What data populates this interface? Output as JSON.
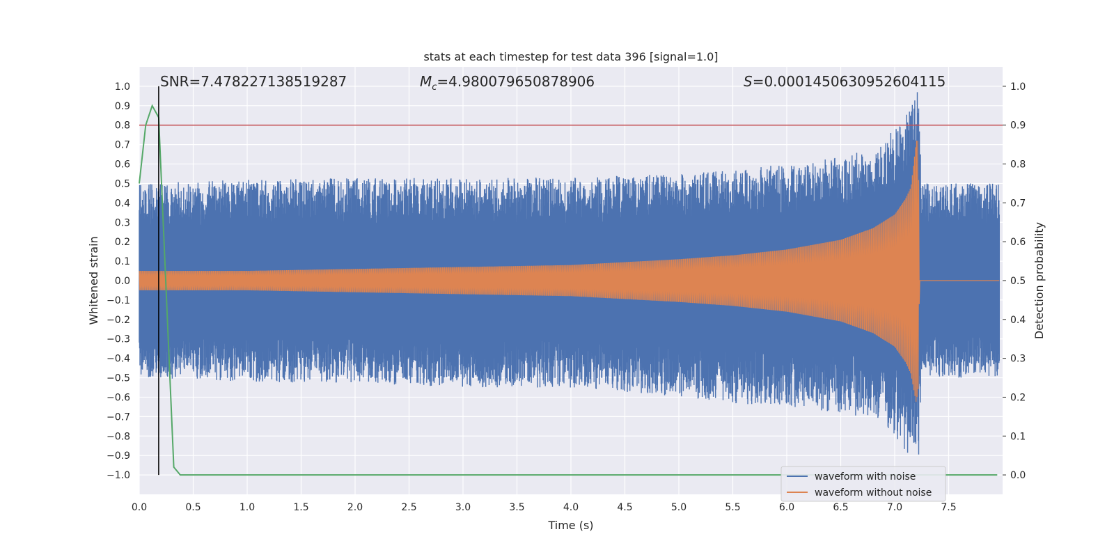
{
  "chart_data": {
    "type": "line",
    "title": "stats at each timestep for test data 396 [signal=1.0]",
    "xlabel": "Time (s)",
    "ylabel_left": "Whitened strain",
    "ylabel_right": "Detection probability",
    "xlim": [
      0.0,
      8.0
    ],
    "ylim_left": [
      -1.1,
      1.1
    ],
    "ylim_right": [
      -0.05,
      1.05
    ],
    "x_ticks": [
      "0.0",
      "0.5",
      "1.0",
      "1.5",
      "2.0",
      "2.5",
      "3.0",
      "3.5",
      "4.0",
      "4.5",
      "5.0",
      "5.5",
      "6.0",
      "6.5",
      "7.0",
      "7.5"
    ],
    "y_left_ticks": [
      "1.0",
      "0.9",
      "0.8",
      "0.7",
      "0.6",
      "0.5",
      "0.4",
      "0.3",
      "0.2",
      "0.1",
      "0.0",
      "−0.1",
      "−0.2",
      "−0.3",
      "−0.4",
      "−0.5",
      "−0.6",
      "−0.7",
      "−0.8",
      "−0.9",
      "−1.0"
    ],
    "y_right_ticks": [
      "1.0",
      "0.9",
      "0.8",
      "0.7",
      "0.6",
      "0.5",
      "0.4",
      "0.3",
      "0.2",
      "0.1",
      "0.0"
    ],
    "grid": true,
    "legend_position": "lower-right",
    "annotations": {
      "snr": "SNR=7.478227138519287",
      "mc_symbol": "M",
      "mc_sub": "c",
      "mc_value": "=4.980079650878906",
      "s_symbol": "S",
      "s_value": "=0.0001450630952604115"
    },
    "series": [
      {
        "name": "waveform with noise",
        "color": "#4c72b0",
        "axis": "left",
        "envelope": {
          "x": [
            0.0,
            1.0,
            2.0,
            3.0,
            4.0,
            5.0,
            5.5,
            6.0,
            6.5,
            6.8,
            7.0,
            7.15,
            7.22,
            7.25,
            7.5,
            8.0
          ],
          "upper": [
            0.5,
            0.52,
            0.53,
            0.53,
            0.53,
            0.55,
            0.57,
            0.6,
            0.64,
            0.68,
            0.78,
            0.9,
            1.0,
            0.5,
            0.5,
            0.5
          ],
          "lower": [
            -0.5,
            -0.52,
            -0.53,
            -0.55,
            -0.55,
            -0.6,
            -0.63,
            -0.65,
            -0.68,
            -0.72,
            -0.8,
            -0.92,
            -0.96,
            -0.5,
            -0.5,
            -0.5
          ]
        }
      },
      {
        "name": "waveform without noise",
        "color": "#dd8452",
        "axis": "left",
        "envelope": {
          "x": [
            0.0,
            1.0,
            2.0,
            3.0,
            4.0,
            5.0,
            5.5,
            6.0,
            6.5,
            6.8,
            7.0,
            7.1,
            7.15,
            7.2,
            7.22,
            7.23,
            8.0
          ],
          "upper": [
            0.05,
            0.05,
            0.06,
            0.07,
            0.08,
            0.11,
            0.13,
            0.16,
            0.21,
            0.27,
            0.34,
            0.42,
            0.48,
            0.72,
            0.72,
            0.0,
            0.0
          ],
          "lower": [
            -0.05,
            -0.05,
            -0.06,
            -0.07,
            -0.08,
            -0.11,
            -0.13,
            -0.16,
            -0.21,
            -0.27,
            -0.34,
            -0.42,
            -0.48,
            -0.63,
            -0.55,
            0.0,
            0.0
          ]
        }
      },
      {
        "name": "detection probability",
        "color": "#55a868",
        "axis": "right",
        "x": [
          0.0,
          0.06,
          0.12,
          0.18,
          0.32,
          0.38,
          0.5,
          1.0,
          2.0,
          3.0,
          4.0,
          5.0,
          6.0,
          7.0,
          7.95
        ],
        "y": [
          0.75,
          0.9,
          0.95,
          0.92,
          0.02,
          0.0,
          0.0,
          0.0,
          0.0,
          0.0,
          0.0,
          0.0,
          0.0,
          0.0,
          0.0
        ]
      }
    ],
    "threshold_line": {
      "axis": "left",
      "y": 0.8,
      "color": "#c44e52"
    },
    "marker_line": {
      "x": 0.18,
      "y_from": -1.0,
      "y_to": 1.0,
      "color": "#000000"
    }
  }
}
